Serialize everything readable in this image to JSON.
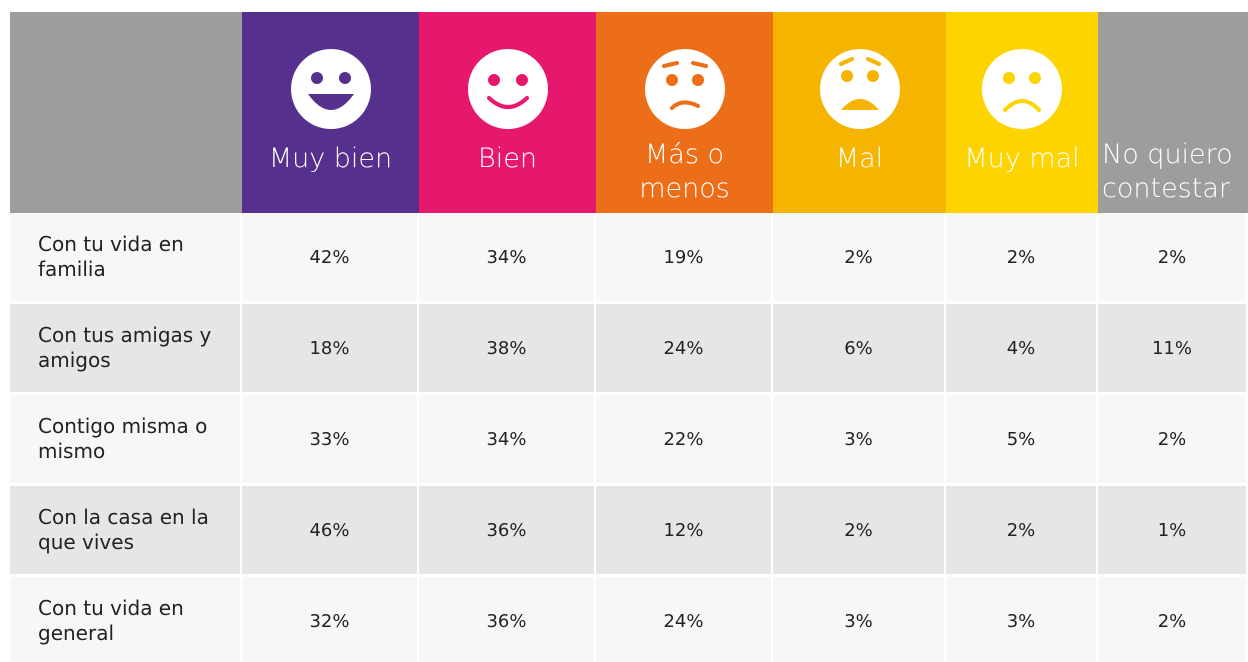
{
  "table": {
    "header": [
      "Muy bien",
      "Bien",
      "Más o menos",
      "Mal",
      "Muy mal",
      "No quiero contestar"
    ],
    "rows": [
      {
        "label": "Con tu vida en familia",
        "cells": [
          "42%",
          "34%",
          "19%",
          "2%",
          "2%",
          "2%"
        ]
      },
      {
        "label": "Con tus amigas y amigos",
        "cells": [
          "18%",
          "38%",
          "24%",
          "6%",
          "4%",
          "11%"
        ]
      },
      {
        "label": "Contigo misma o mismo",
        "cells": [
          "33%",
          "34%",
          "22%",
          "3%",
          "5%",
          "2%"
        ]
      },
      {
        "label": "Con la casa en la que vives",
        "cells": [
          "46%",
          "36%",
          "12%",
          "2%",
          "2%",
          "1%"
        ]
      },
      {
        "label": "Con tu vida en general",
        "cells": [
          "32%",
          "36%",
          "24%",
          "3%",
          "3%",
          "2%"
        ]
      }
    ]
  }
}
